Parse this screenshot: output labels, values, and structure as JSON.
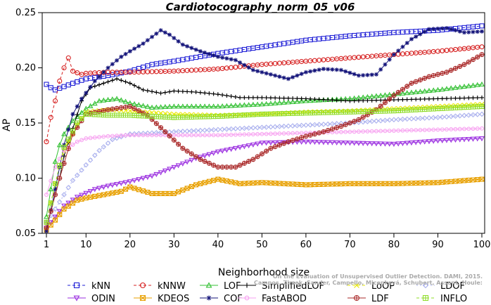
{
  "chart_data": {
    "type": "line",
    "title": "Cardiotocography_norm_05_v06",
    "xlabel": "Neighborhood size",
    "ylabel": "AP",
    "xlim": [
      0,
      100
    ],
    "ylim": [
      0.05,
      0.25
    ],
    "xticks": [
      1,
      10,
      20,
      30,
      40,
      50,
      60,
      70,
      80,
      90,
      100
    ],
    "yticks": [
      0.05,
      0.1,
      0.15,
      0.2,
      0.25
    ],
    "ytick_labels": [
      "0.05",
      "0.10",
      "0.15",
      "0.20",
      "0.25"
    ],
    "grid": false,
    "legend_position": "bottom",
    "watermark": "Campos, Zimek, Sander, Campello, Micenková, Schubert, Assent, Houle: On the Evaluation of Unsupervised Outlier Detection. DAMI, 2015.",
    "series": [
      {
        "name": "kNN",
        "color": "#1f1fd6",
        "marker": "square",
        "dash": "4,3",
        "points": [
          [
            1,
            0.185
          ],
          [
            2,
            0.182
          ],
          [
            3,
            0.18
          ],
          [
            5,
            0.183
          ],
          [
            7,
            0.186
          ],
          [
            10,
            0.19
          ],
          [
            15,
            0.193
          ],
          [
            20,
            0.197
          ],
          [
            25,
            0.203
          ],
          [
            30,
            0.206
          ],
          [
            40,
            0.213
          ],
          [
            50,
            0.219
          ],
          [
            60,
            0.225
          ],
          [
            70,
            0.229
          ],
          [
            80,
            0.232
          ],
          [
            90,
            0.234
          ],
          [
            100,
            0.238
          ]
        ]
      },
      {
        "name": "kNNW",
        "color": "#d62020",
        "marker": "circle",
        "dash": "4,3",
        "points": [
          [
            1,
            0.133
          ],
          [
            2,
            0.155
          ],
          [
            3,
            0.17
          ],
          [
            4,
            0.188
          ],
          [
            5,
            0.2
          ],
          [
            6,
            0.209
          ],
          [
            7,
            0.197
          ],
          [
            9,
            0.194
          ],
          [
            10,
            0.195
          ],
          [
            15,
            0.196
          ],
          [
            20,
            0.196
          ],
          [
            30,
            0.197
          ],
          [
            40,
            0.199
          ],
          [
            50,
            0.203
          ],
          [
            60,
            0.206
          ],
          [
            70,
            0.209
          ],
          [
            80,
            0.212
          ],
          [
            90,
            0.215
          ],
          [
            100,
            0.219
          ]
        ]
      },
      {
        "name": "LOF",
        "color": "#33c033",
        "marker": "triangle",
        "dash": "",
        "points": [
          [
            1,
            0.065
          ],
          [
            2,
            0.09
          ],
          [
            3,
            0.115
          ],
          [
            4,
            0.13
          ],
          [
            5,
            0.14
          ],
          [
            7,
            0.152
          ],
          [
            10,
            0.163
          ],
          [
            13,
            0.17
          ],
          [
            17,
            0.172
          ],
          [
            20,
            0.168
          ],
          [
            25,
            0.164
          ],
          [
            30,
            0.165
          ],
          [
            40,
            0.165
          ],
          [
            50,
            0.167
          ],
          [
            60,
            0.17
          ],
          [
            70,
            0.172
          ],
          [
            80,
            0.176
          ],
          [
            90,
            0.18
          ],
          [
            100,
            0.185
          ]
        ]
      },
      {
        "name": "SimplifiedLOF",
        "color": "#000000",
        "marker": "plus",
        "dash": "",
        "points": [
          [
            1,
            0.055
          ],
          [
            2,
            0.07
          ],
          [
            3,
            0.085
          ],
          [
            4,
            0.1
          ],
          [
            5,
            0.12
          ],
          [
            7,
            0.145
          ],
          [
            9,
            0.17
          ],
          [
            11,
            0.182
          ],
          [
            14,
            0.186
          ],
          [
            17,
            0.19
          ],
          [
            20,
            0.186
          ],
          [
            23,
            0.18
          ],
          [
            27,
            0.177
          ],
          [
            30,
            0.179
          ],
          [
            35,
            0.178
          ],
          [
            40,
            0.176
          ],
          [
            45,
            0.173
          ],
          [
            50,
            0.173
          ],
          [
            60,
            0.172
          ],
          [
            70,
            0.17
          ],
          [
            80,
            0.171
          ],
          [
            90,
            0.172
          ],
          [
            100,
            0.173
          ]
        ]
      },
      {
        "name": "LoOP",
        "color": "#e8e800",
        "marker": "x",
        "dash": "4,3",
        "points": [
          [
            1,
            0.06
          ],
          [
            3,
            0.095
          ],
          [
            5,
            0.125
          ],
          [
            8,
            0.148
          ],
          [
            10,
            0.16
          ],
          [
            15,
            0.162
          ],
          [
            20,
            0.161
          ],
          [
            30,
            0.158
          ],
          [
            40,
            0.157
          ],
          [
            50,
            0.158
          ],
          [
            60,
            0.16
          ],
          [
            70,
            0.161
          ],
          [
            80,
            0.163
          ],
          [
            90,
            0.165
          ],
          [
            100,
            0.167
          ]
        ]
      },
      {
        "name": "LDOF",
        "color": "#aab0ee",
        "marker": "diamond",
        "dash": "2,3",
        "points": [
          [
            1,
            0.06
          ],
          [
            3,
            0.072
          ],
          [
            5,
            0.085
          ],
          [
            7,
            0.098
          ],
          [
            10,
            0.112
          ],
          [
            13,
            0.125
          ],
          [
            16,
            0.135
          ],
          [
            20,
            0.14
          ],
          [
            30,
            0.142
          ],
          [
            40,
            0.144
          ],
          [
            50,
            0.146
          ],
          [
            60,
            0.148
          ],
          [
            70,
            0.15
          ],
          [
            80,
            0.153
          ],
          [
            90,
            0.155
          ],
          [
            100,
            0.158
          ]
        ]
      },
      {
        "name": "ODIN",
        "color": "#9b2fe0",
        "marker": "triangle-down",
        "dash": "",
        "points": [
          [
            1,
            0.055
          ],
          [
            3,
            0.065
          ],
          [
            5,
            0.075
          ],
          [
            8,
            0.083
          ],
          [
            12,
            0.09
          ],
          [
            15,
            0.093
          ],
          [
            20,
            0.097
          ],
          [
            25,
            0.102
          ],
          [
            30,
            0.11
          ],
          [
            35,
            0.118
          ],
          [
            40,
            0.124
          ],
          [
            45,
            0.128
          ],
          [
            50,
            0.132
          ],
          [
            60,
            0.133
          ],
          [
            70,
            0.132
          ],
          [
            80,
            0.131
          ],
          [
            90,
            0.134
          ],
          [
            100,
            0.136
          ]
        ]
      },
      {
        "name": "KDEOS",
        "color": "#e8a000",
        "marker": "square-x",
        "dash": "",
        "points": [
          [
            1,
            0.053
          ],
          [
            3,
            0.062
          ],
          [
            5,
            0.072
          ],
          [
            8,
            0.08
          ],
          [
            10,
            0.082
          ],
          [
            14,
            0.085
          ],
          [
            18,
            0.088
          ],
          [
            20,
            0.092
          ],
          [
            25,
            0.086
          ],
          [
            30,
            0.086
          ],
          [
            35,
            0.094
          ],
          [
            40,
            0.099
          ],
          [
            45,
            0.095
          ],
          [
            50,
            0.096
          ],
          [
            60,
            0.094
          ],
          [
            70,
            0.095
          ],
          [
            80,
            0.095
          ],
          [
            90,
            0.096
          ],
          [
            100,
            0.099
          ]
        ]
      },
      {
        "name": "COF",
        "color": "#14147a",
        "marker": "star",
        "dash": "",
        "points": [
          [
            1,
            0.052
          ],
          [
            3,
            0.09
          ],
          [
            5,
            0.13
          ],
          [
            7,
            0.158
          ],
          [
            9,
            0.172
          ],
          [
            12,
            0.188
          ],
          [
            15,
            0.2
          ],
          [
            18,
            0.21
          ],
          [
            20,
            0.215
          ],
          [
            23,
            0.222
          ],
          [
            27,
            0.234
          ],
          [
            29,
            0.23
          ],
          [
            32,
            0.221
          ],
          [
            36,
            0.215
          ],
          [
            40,
            0.21
          ],
          [
            44,
            0.207
          ],
          [
            48,
            0.198
          ],
          [
            52,
            0.194
          ],
          [
            56,
            0.19
          ],
          [
            60,
            0.196
          ],
          [
            64,
            0.199
          ],
          [
            68,
            0.198
          ],
          [
            72,
            0.193
          ],
          [
            76,
            0.194
          ],
          [
            80,
            0.212
          ],
          [
            84,
            0.226
          ],
          [
            88,
            0.235
          ],
          [
            92,
            0.236
          ],
          [
            96,
            0.232
          ],
          [
            100,
            0.233
          ]
        ]
      },
      {
        "name": "FastABOD",
        "color": "#f7a0f0",
        "marker": "circle-small",
        "dash": "",
        "points": [
          [
            1,
            0.085
          ],
          [
            3,
            0.11
          ],
          [
            5,
            0.125
          ],
          [
            8,
            0.133
          ],
          [
            10,
            0.136
          ],
          [
            15,
            0.138
          ],
          [
            20,
            0.139
          ],
          [
            30,
            0.139
          ],
          [
            40,
            0.139
          ],
          [
            50,
            0.14
          ],
          [
            60,
            0.141
          ],
          [
            70,
            0.142
          ],
          [
            80,
            0.143
          ],
          [
            90,
            0.144
          ],
          [
            100,
            0.145
          ]
        ]
      },
      {
        "name": "LDF",
        "color": "#aa2a2a",
        "marker": "circle-plus",
        "dash": "",
        "points": [
          [
            1,
            0.055
          ],
          [
            4,
            0.1
          ],
          [
            7,
            0.14
          ],
          [
            10,
            0.158
          ],
          [
            15,
            0.162
          ],
          [
            20,
            0.165
          ],
          [
            24,
            0.157
          ],
          [
            28,
            0.142
          ],
          [
            32,
            0.127
          ],
          [
            36,
            0.117
          ],
          [
            40,
            0.11
          ],
          [
            44,
            0.11
          ],
          [
            48,
            0.117
          ],
          [
            52,
            0.127
          ],
          [
            56,
            0.133
          ],
          [
            60,
            0.138
          ],
          [
            64,
            0.142
          ],
          [
            68,
            0.147
          ],
          [
            72,
            0.153
          ],
          [
            76,
            0.162
          ],
          [
            80,
            0.175
          ],
          [
            84,
            0.186
          ],
          [
            88,
            0.192
          ],
          [
            92,
            0.196
          ],
          [
            96,
            0.203
          ],
          [
            100,
            0.212
          ]
        ]
      },
      {
        "name": "INFLO",
        "color": "#8fdc2a",
        "marker": "square-cross",
        "dash": "4,3",
        "points": [
          [
            1,
            0.06
          ],
          [
            3,
            0.095
          ],
          [
            5,
            0.128
          ],
          [
            8,
            0.15
          ],
          [
            10,
            0.158
          ],
          [
            15,
            0.157
          ],
          [
            20,
            0.157
          ],
          [
            25,
            0.156
          ],
          [
            30,
            0.155
          ],
          [
            40,
            0.156
          ],
          [
            50,
            0.158
          ],
          [
            60,
            0.159
          ],
          [
            70,
            0.16
          ],
          [
            80,
            0.161
          ],
          [
            90,
            0.163
          ],
          [
            100,
            0.165
          ]
        ]
      }
    ]
  }
}
